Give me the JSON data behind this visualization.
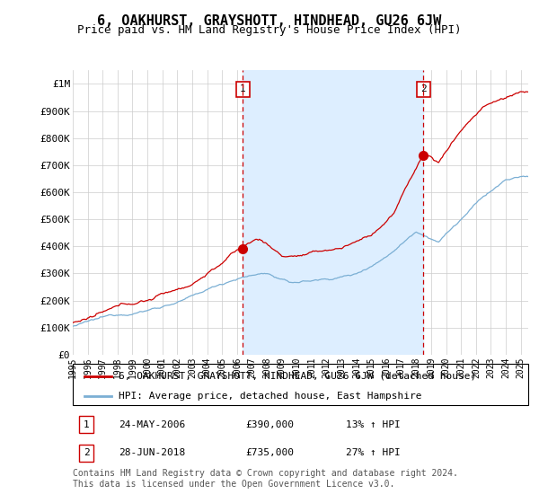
{
  "title": "6, OAKHURST, GRAYSHOTT, HINDHEAD, GU26 6JW",
  "subtitle": "Price paid vs. HM Land Registry's House Price Index (HPI)",
  "ylabel_ticks": [
    "£0",
    "£100K",
    "£200K",
    "£300K",
    "£400K",
    "£500K",
    "£600K",
    "£700K",
    "£800K",
    "£900K",
    "£1M"
  ],
  "ytick_values": [
    0,
    100000,
    200000,
    300000,
    400000,
    500000,
    600000,
    700000,
    800000,
    900000,
    1000000
  ],
  "ylim": [
    0,
    1050000
  ],
  "xlim_start": 1995.0,
  "xlim_end": 2025.5,
  "xticks": [
    1995,
    1996,
    1997,
    1998,
    1999,
    2000,
    2001,
    2002,
    2003,
    2004,
    2005,
    2006,
    2007,
    2008,
    2009,
    2010,
    2011,
    2012,
    2013,
    2014,
    2015,
    2016,
    2017,
    2018,
    2019,
    2020,
    2021,
    2022,
    2023,
    2024,
    2025
  ],
  "sale1_x": 2006.39,
  "sale1_y": 390000,
  "sale2_x": 2018.49,
  "sale2_y": 735000,
  "sale1_label": "1",
  "sale2_label": "2",
  "sale1_date": "24-MAY-2006",
  "sale1_price": "£390,000",
  "sale1_hpi": "13% ↑ HPI",
  "sale2_date": "28-JUN-2018",
  "sale2_price": "£735,000",
  "sale2_hpi": "27% ↑ HPI",
  "legend_house": "6, OAKHURST, GRAYSHOTT, HINDHEAD, GU26 6JW (detached house)",
  "legend_hpi": "HPI: Average price, detached house, East Hampshire",
  "footnote": "Contains HM Land Registry data © Crown copyright and database right 2024.\nThis data is licensed under the Open Government Licence v3.0.",
  "house_color": "#cc0000",
  "hpi_color": "#7bafd4",
  "shade_color": "#ddeeff",
  "vline_color": "#cc0000",
  "grid_color": "#cccccc",
  "background_color": "#ffffff",
  "title_fontsize": 11,
  "subtitle_fontsize": 9,
  "tick_fontsize": 8,
  "legend_fontsize": 8,
  "footnote_fontsize": 7
}
